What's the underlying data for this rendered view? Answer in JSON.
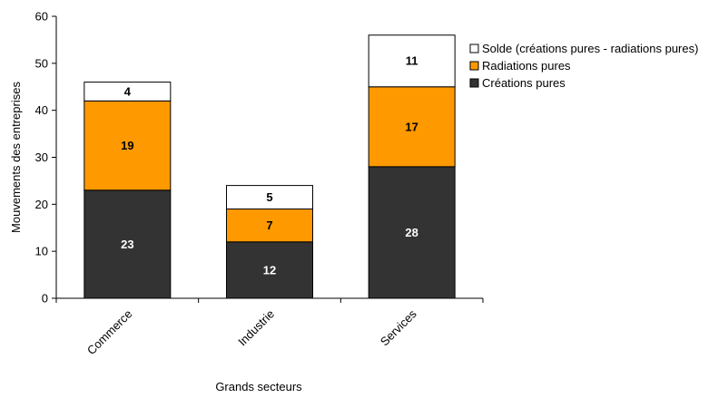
{
  "chart_data": {
    "type": "bar",
    "stacked": true,
    "categories": [
      "Commerce",
      "Industrie",
      "Services"
    ],
    "series": [
      {
        "name": "Créations pures",
        "values": [
          23,
          12,
          28
        ],
        "color": "#333333",
        "label_color": "#ffffff"
      },
      {
        "name": "Radiations pures",
        "values": [
          19,
          7,
          17
        ],
        "color": "#ff9900",
        "label_color": "#000000"
      },
      {
        "name": "Solde (créations pures - radiations pures)",
        "values": [
          4,
          5,
          11
        ],
        "color": "#ffffff",
        "label_color": "#000000"
      }
    ],
    "xlabel": "Grands secteurs",
    "ylabel": "Mouvements des entreprises",
    "ylim": [
      0,
      60
    ],
    "yticks": [
      0,
      10,
      20,
      30,
      40,
      50,
      60
    ],
    "grid": false,
    "legend_position": "top-right"
  }
}
